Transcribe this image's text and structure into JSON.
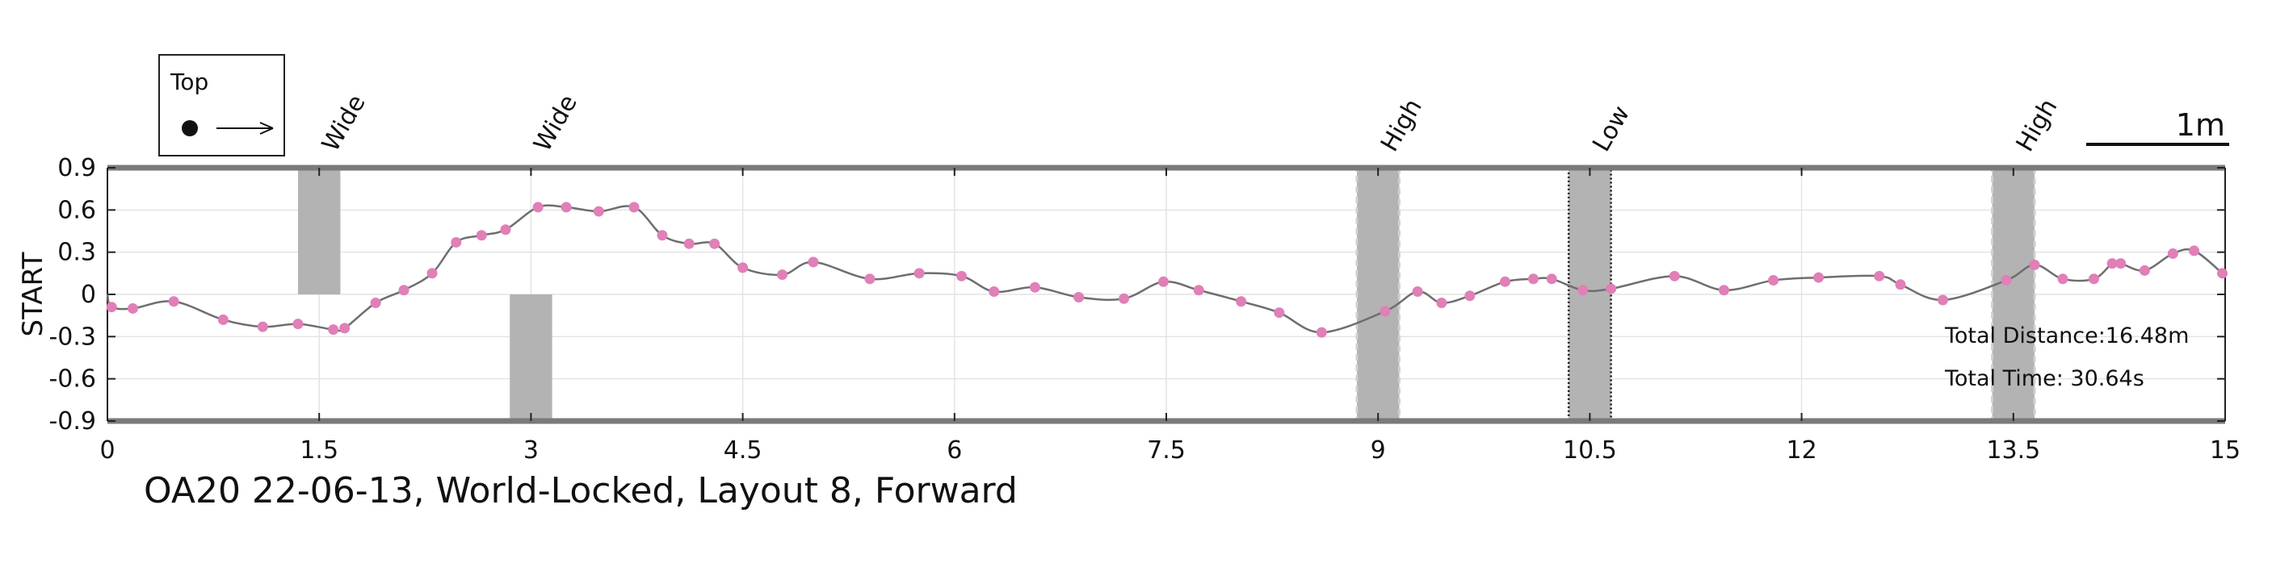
{
  "chart_data": {
    "type": "line",
    "ylabel": "START",
    "xlim": [
      0,
      15
    ],
    "ylim": [
      -0.9,
      0.9
    ],
    "xticks": [
      0,
      1.5,
      3,
      4.5,
      6,
      7.5,
      9,
      10.5,
      12,
      13.5,
      15
    ],
    "xtick_labels": [
      "0",
      "1.5",
      "3",
      "4.5",
      "6",
      "7.5",
      "9",
      "10.5",
      "12",
      "13.5",
      "15"
    ],
    "yticks": [
      0.9,
      0.6,
      0.3,
      0,
      -0.3,
      -0.6,
      -0.9
    ],
    "ytick_labels": [
      "0.9",
      "0.6",
      "0.3",
      "0",
      "-0.3",
      "-0.6",
      "-0.9"
    ],
    "grid": true,
    "line_color": "#6e6e6e",
    "marker_color": "#e07fb8",
    "bar_color": "#b3b3b3",
    "points": [
      [
        0.03,
        -0.09
      ],
      [
        0.18,
        -0.1
      ],
      [
        0.47,
        -0.05
      ],
      [
        0.82,
        -0.18
      ],
      [
        1.1,
        -0.23
      ],
      [
        1.35,
        -0.21
      ],
      [
        1.6,
        -0.25
      ],
      [
        1.68,
        -0.24
      ],
      [
        1.9,
        -0.06
      ],
      [
        2.1,
        0.03
      ],
      [
        2.3,
        0.15
      ],
      [
        2.47,
        0.37
      ],
      [
        2.65,
        0.42
      ],
      [
        2.82,
        0.46
      ],
      [
        3.05,
        0.62
      ],
      [
        3.25,
        0.62
      ],
      [
        3.48,
        0.59
      ],
      [
        3.73,
        0.62
      ],
      [
        3.93,
        0.42
      ],
      [
        4.12,
        0.36
      ],
      [
        4.3,
        0.36
      ],
      [
        4.5,
        0.19
      ],
      [
        4.78,
        0.14
      ],
      [
        5.0,
        0.23
      ],
      [
        5.4,
        0.11
      ],
      [
        5.75,
        0.15
      ],
      [
        6.05,
        0.13
      ],
      [
        6.28,
        0.02
      ],
      [
        6.57,
        0.05
      ],
      [
        6.88,
        -0.02
      ],
      [
        7.2,
        -0.03
      ],
      [
        7.48,
        0.09
      ],
      [
        7.73,
        0.03
      ],
      [
        8.03,
        -0.05
      ],
      [
        8.3,
        -0.13
      ],
      [
        8.6,
        -0.27
      ],
      [
        9.05,
        -0.12
      ],
      [
        9.28,
        0.02
      ],
      [
        9.45,
        -0.06
      ],
      [
        9.65,
        -0.01
      ],
      [
        9.9,
        0.09
      ],
      [
        10.1,
        0.11
      ],
      [
        10.23,
        0.11
      ],
      [
        10.45,
        0.03
      ],
      [
        10.65,
        0.04
      ],
      [
        11.1,
        0.13
      ],
      [
        11.45,
        0.03
      ],
      [
        11.8,
        0.1
      ],
      [
        12.12,
        0.12
      ],
      [
        12.55,
        0.13
      ],
      [
        12.7,
        0.07
      ],
      [
        13.0,
        -0.04
      ],
      [
        13.45,
        0.1
      ],
      [
        13.65,
        0.21
      ],
      [
        13.85,
        0.11
      ],
      [
        14.07,
        0.11
      ],
      [
        14.2,
        0.22
      ],
      [
        14.26,
        0.22
      ],
      [
        14.43,
        0.17
      ],
      [
        14.63,
        0.29
      ],
      [
        14.78,
        0.31
      ],
      [
        14.98,
        0.15
      ]
    ],
    "obstacles": [
      {
        "label": "Wide",
        "type": "wide",
        "x": [
          1.35,
          1.65
        ],
        "y": [
          0,
          0.9
        ],
        "label_x": 1.65
      },
      {
        "label": "Wide",
        "type": "wide",
        "x": [
          2.85,
          3.15
        ],
        "y": [
          -0.9,
          0
        ],
        "label_x": 3.15
      },
      {
        "label": "High",
        "type": "high",
        "x": [
          8.85,
          9.15
        ],
        "y": [
          -0.9,
          0.9
        ],
        "label_x": 9.15
      },
      {
        "label": "Low",
        "type": "low",
        "x": [
          10.35,
          10.65
        ],
        "y": [
          -0.9,
          0.9
        ],
        "label_x": 10.65
      },
      {
        "label": "High",
        "type": "high",
        "x": [
          13.35,
          13.65
        ],
        "y": [
          -0.9,
          0.9
        ],
        "label_x": 13.65
      }
    ]
  },
  "legend": {
    "title": "Top"
  },
  "scale_bar": {
    "label": "1m"
  },
  "caption": "OA20 22-06-13, World-Locked, Layout 8, Forward",
  "totals": {
    "distance": "Total Distance:16.48m",
    "time": "Total Time: 30.64s"
  }
}
